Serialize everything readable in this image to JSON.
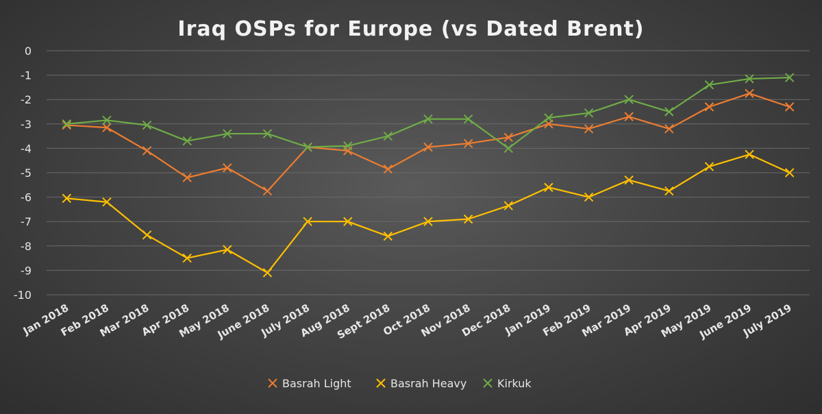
{
  "chart_data": {
    "type": "line",
    "title": "Iraq OSPs for Europe (vs Dated Brent)",
    "xlabel": "",
    "ylabel": "",
    "ylim": [
      -10,
      0
    ],
    "yticks": [
      "0",
      "-1",
      "-2",
      "-3",
      "-4",
      "-5",
      "-6",
      "-7",
      "-8",
      "-9",
      "-10"
    ],
    "grid": true,
    "legend_position": "bottom",
    "categories": [
      "Jan 2018",
      "Feb 2018",
      "Mar 2018",
      "Apr 2018",
      "May 2018",
      "June 2018",
      "July 2018",
      "Aug 2018",
      "Sept 2018",
      "Oct 2018",
      "Nov 2018",
      "Dec 2018",
      "Jan 2019",
      "Feb 2019",
      "Mar 2019",
      "Apr 2019",
      "May 2019",
      "June 2019",
      "July 2019"
    ],
    "series": [
      {
        "name": "Basrah Light",
        "color": "#ed7d31",
        "values": [
          -3.05,
          -3.15,
          -4.1,
          -5.2,
          -4.8,
          -5.75,
          -3.95,
          -4.1,
          -4.85,
          -3.95,
          -3.8,
          -3.55,
          -3.0,
          -3.2,
          -2.7,
          -3.2,
          -2.3,
          -1.75,
          -2.3
        ]
      },
      {
        "name": "Basrah Heavy",
        "color": "#ffc000",
        "values": [
          -6.05,
          -6.2,
          -7.55,
          -8.5,
          -8.15,
          -9.1,
          -7.0,
          -7.0,
          -7.6,
          -7.0,
          -6.9,
          -6.35,
          -5.6,
          -6.0,
          -5.3,
          -5.75,
          -4.75,
          -4.25,
          -5.0
        ]
      },
      {
        "name": "Kirkuk",
        "color": "#70ad47",
        "values": [
          -3.0,
          -2.85,
          -3.05,
          -3.7,
          -3.4,
          -3.4,
          -3.95,
          -3.9,
          -3.5,
          -2.8,
          -2.8,
          -4.0,
          -2.75,
          -2.55,
          -2.0,
          -2.5,
          -1.4,
          -1.15,
          -1.1
        ]
      }
    ]
  }
}
